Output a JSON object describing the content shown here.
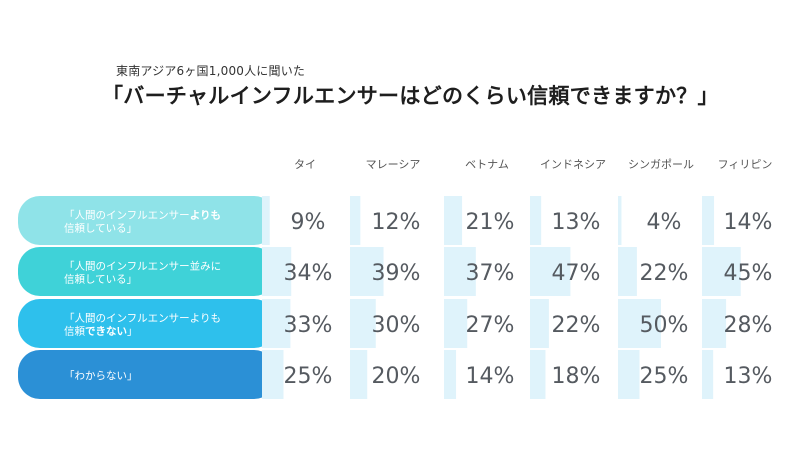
{
  "header": {
    "subtitle": "東南アジア6ヶ国1,000人に聞いた",
    "title": "「バーチャルインフルエンサーはどのくらい信頼できますか？」"
  },
  "chart_data": {
    "type": "table",
    "categories": [
      "タイ",
      "マレーシア",
      "ベトナム",
      "インドネシア",
      "シンガポール",
      "フィリピン"
    ],
    "series": [
      {
        "name": "「人間のインフルエンサーよりも信頼している」",
        "label_lines": [
          [
            {
              "text": "「人間のインフルエンサー",
              "bold": false
            },
            {
              "text": "よりも",
              "bold": true
            }
          ],
          [
            {
              "text": "信頼している」",
              "bold": false
            }
          ]
        ],
        "color": "#8fe3e8",
        "values": [
          9,
          12,
          21,
          13,
          4,
          14
        ],
        "labels": [
          "9%",
          "12%",
          "21%",
          "13%",
          "4%",
          "14%"
        ]
      },
      {
        "name": "「人間のインフルエンサー並みに信頼している」",
        "label_lines": [
          [
            {
              "text": "「人間のインフルエンサー並みに",
              "bold": false
            }
          ],
          [
            {
              "text": "信頼している」",
              "bold": false
            }
          ]
        ],
        "color": "#3fd2d8",
        "values": [
          34,
          39,
          37,
          47,
          22,
          45
        ],
        "labels": [
          "34%",
          "39%",
          "37%",
          "47%",
          "22%",
          "45%"
        ]
      },
      {
        "name": "「人間のインフルエンサーよりも信頼できない」",
        "label_lines": [
          [
            {
              "text": "「人間のインフルエンサーよりも",
              "bold": false
            }
          ],
          [
            {
              "text": "信頼",
              "bold": false
            },
            {
              "text": "できない",
              "bold": true
            },
            {
              "text": "」",
              "bold": false
            }
          ]
        ],
        "color": "#2ec0ec",
        "values": [
          33,
          30,
          27,
          22,
          50,
          28
        ],
        "labels": [
          "33%",
          "30%",
          "27%",
          "22%",
          "50%",
          "28%"
        ]
      },
      {
        "name": "「わからない」",
        "label_lines": [
          [
            {
              "text": "「わからない」",
              "bold": false
            }
          ]
        ],
        "color": "#2b90d6",
        "values": [
          25,
          20,
          14,
          18,
          25,
          13
        ],
        "labels": [
          "25%",
          "20%",
          "14%",
          "18%",
          "25%",
          "13%"
        ]
      }
    ],
    "bar_color": "#dff3fb",
    "xlim": [
      0,
      100
    ]
  }
}
